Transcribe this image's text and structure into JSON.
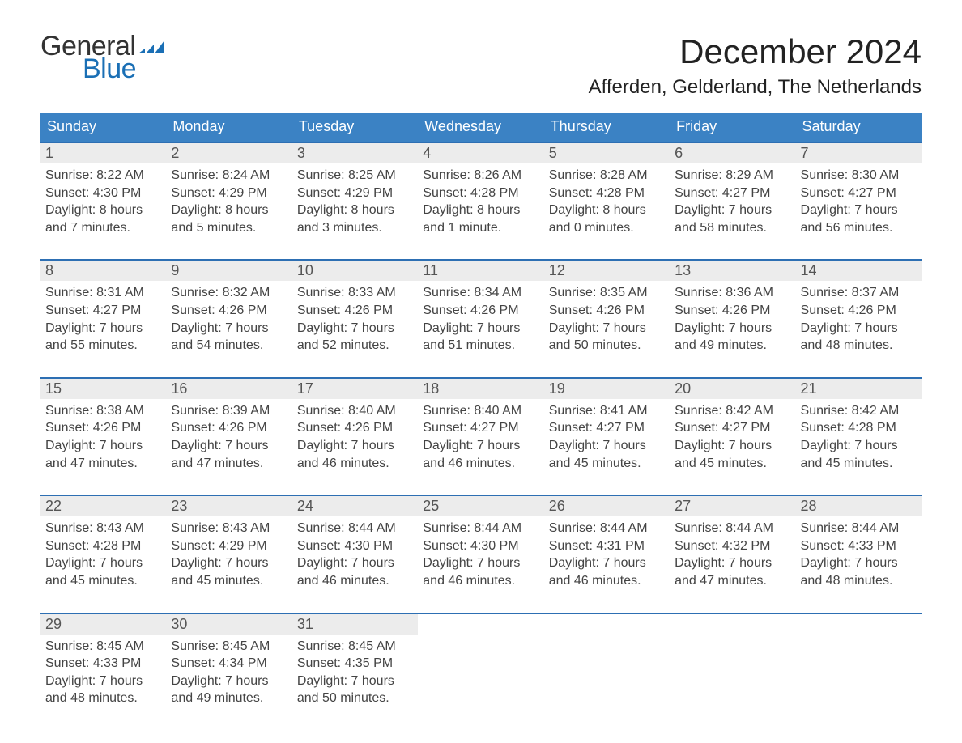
{
  "logo": {
    "line1": "General",
    "line2": "Blue"
  },
  "title": "December 2024",
  "location": "Afferden, Gelderland, The Netherlands",
  "colors": {
    "header_blue": "#3b82c4",
    "accent_blue": "#2d6fb3",
    "row_gray": "#ececec",
    "logo_blue": "#1a6fb5",
    "text": "#222222",
    "background": "#ffffff"
  },
  "days_of_week": [
    "Sunday",
    "Monday",
    "Tuesday",
    "Wednesday",
    "Thursday",
    "Friday",
    "Saturday"
  ],
  "weeks": [
    [
      {
        "n": "1",
        "sr": "Sunrise: 8:22 AM",
        "ss": "Sunset: 4:30 PM",
        "d1": "Daylight: 8 hours",
        "d2": "and 7 minutes."
      },
      {
        "n": "2",
        "sr": "Sunrise: 8:24 AM",
        "ss": "Sunset: 4:29 PM",
        "d1": "Daylight: 8 hours",
        "d2": "and 5 minutes."
      },
      {
        "n": "3",
        "sr": "Sunrise: 8:25 AM",
        "ss": "Sunset: 4:29 PM",
        "d1": "Daylight: 8 hours",
        "d2": "and 3 minutes."
      },
      {
        "n": "4",
        "sr": "Sunrise: 8:26 AM",
        "ss": "Sunset: 4:28 PM",
        "d1": "Daylight: 8 hours",
        "d2": "and 1 minute."
      },
      {
        "n": "5",
        "sr": "Sunrise: 8:28 AM",
        "ss": "Sunset: 4:28 PM",
        "d1": "Daylight: 8 hours",
        "d2": "and 0 minutes."
      },
      {
        "n": "6",
        "sr": "Sunrise: 8:29 AM",
        "ss": "Sunset: 4:27 PM",
        "d1": "Daylight: 7 hours",
        "d2": "and 58 minutes."
      },
      {
        "n": "7",
        "sr": "Sunrise: 8:30 AM",
        "ss": "Sunset: 4:27 PM",
        "d1": "Daylight: 7 hours",
        "d2": "and 56 minutes."
      }
    ],
    [
      {
        "n": "8",
        "sr": "Sunrise: 8:31 AM",
        "ss": "Sunset: 4:27 PM",
        "d1": "Daylight: 7 hours",
        "d2": "and 55 minutes."
      },
      {
        "n": "9",
        "sr": "Sunrise: 8:32 AM",
        "ss": "Sunset: 4:26 PM",
        "d1": "Daylight: 7 hours",
        "d2": "and 54 minutes."
      },
      {
        "n": "10",
        "sr": "Sunrise: 8:33 AM",
        "ss": "Sunset: 4:26 PM",
        "d1": "Daylight: 7 hours",
        "d2": "and 52 minutes."
      },
      {
        "n": "11",
        "sr": "Sunrise: 8:34 AM",
        "ss": "Sunset: 4:26 PM",
        "d1": "Daylight: 7 hours",
        "d2": "and 51 minutes."
      },
      {
        "n": "12",
        "sr": "Sunrise: 8:35 AM",
        "ss": "Sunset: 4:26 PM",
        "d1": "Daylight: 7 hours",
        "d2": "and 50 minutes."
      },
      {
        "n": "13",
        "sr": "Sunrise: 8:36 AM",
        "ss": "Sunset: 4:26 PM",
        "d1": "Daylight: 7 hours",
        "d2": "and 49 minutes."
      },
      {
        "n": "14",
        "sr": "Sunrise: 8:37 AM",
        "ss": "Sunset: 4:26 PM",
        "d1": "Daylight: 7 hours",
        "d2": "and 48 minutes."
      }
    ],
    [
      {
        "n": "15",
        "sr": "Sunrise: 8:38 AM",
        "ss": "Sunset: 4:26 PM",
        "d1": "Daylight: 7 hours",
        "d2": "and 47 minutes."
      },
      {
        "n": "16",
        "sr": "Sunrise: 8:39 AM",
        "ss": "Sunset: 4:26 PM",
        "d1": "Daylight: 7 hours",
        "d2": "and 47 minutes."
      },
      {
        "n": "17",
        "sr": "Sunrise: 8:40 AM",
        "ss": "Sunset: 4:26 PM",
        "d1": "Daylight: 7 hours",
        "d2": "and 46 minutes."
      },
      {
        "n": "18",
        "sr": "Sunrise: 8:40 AM",
        "ss": "Sunset: 4:27 PM",
        "d1": "Daylight: 7 hours",
        "d2": "and 46 minutes."
      },
      {
        "n": "19",
        "sr": "Sunrise: 8:41 AM",
        "ss": "Sunset: 4:27 PM",
        "d1": "Daylight: 7 hours",
        "d2": "and 45 minutes."
      },
      {
        "n": "20",
        "sr": "Sunrise: 8:42 AM",
        "ss": "Sunset: 4:27 PM",
        "d1": "Daylight: 7 hours",
        "d2": "and 45 minutes."
      },
      {
        "n": "21",
        "sr": "Sunrise: 8:42 AM",
        "ss": "Sunset: 4:28 PM",
        "d1": "Daylight: 7 hours",
        "d2": "and 45 minutes."
      }
    ],
    [
      {
        "n": "22",
        "sr": "Sunrise: 8:43 AM",
        "ss": "Sunset: 4:28 PM",
        "d1": "Daylight: 7 hours",
        "d2": "and 45 minutes."
      },
      {
        "n": "23",
        "sr": "Sunrise: 8:43 AM",
        "ss": "Sunset: 4:29 PM",
        "d1": "Daylight: 7 hours",
        "d2": "and 45 minutes."
      },
      {
        "n": "24",
        "sr": "Sunrise: 8:44 AM",
        "ss": "Sunset: 4:30 PM",
        "d1": "Daylight: 7 hours",
        "d2": "and 46 minutes."
      },
      {
        "n": "25",
        "sr": "Sunrise: 8:44 AM",
        "ss": "Sunset: 4:30 PM",
        "d1": "Daylight: 7 hours",
        "d2": "and 46 minutes."
      },
      {
        "n": "26",
        "sr": "Sunrise: 8:44 AM",
        "ss": "Sunset: 4:31 PM",
        "d1": "Daylight: 7 hours",
        "d2": "and 46 minutes."
      },
      {
        "n": "27",
        "sr": "Sunrise: 8:44 AM",
        "ss": "Sunset: 4:32 PM",
        "d1": "Daylight: 7 hours",
        "d2": "and 47 minutes."
      },
      {
        "n": "28",
        "sr": "Sunrise: 8:44 AM",
        "ss": "Sunset: 4:33 PM",
        "d1": "Daylight: 7 hours",
        "d2": "and 48 minutes."
      }
    ],
    [
      {
        "n": "29",
        "sr": "Sunrise: 8:45 AM",
        "ss": "Sunset: 4:33 PM",
        "d1": "Daylight: 7 hours",
        "d2": "and 48 minutes."
      },
      {
        "n": "30",
        "sr": "Sunrise: 8:45 AM",
        "ss": "Sunset: 4:34 PM",
        "d1": "Daylight: 7 hours",
        "d2": "and 49 minutes."
      },
      {
        "n": "31",
        "sr": "Sunrise: 8:45 AM",
        "ss": "Sunset: 4:35 PM",
        "d1": "Daylight: 7 hours",
        "d2": "and 50 minutes."
      },
      null,
      null,
      null,
      null
    ]
  ]
}
